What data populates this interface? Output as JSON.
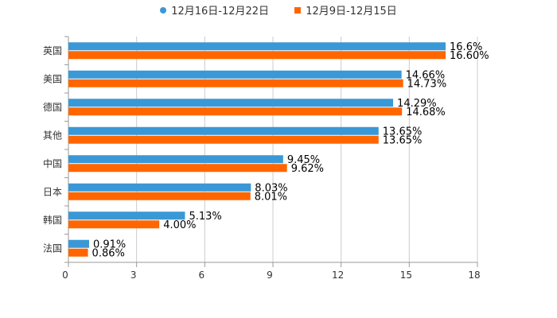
{
  "chart_data": {
    "type": "bar",
    "orientation": "horizontal",
    "categories": [
      "英国",
      "美国",
      "德国",
      "其他",
      "中国",
      "日本",
      "韩国",
      "法国"
    ],
    "series": [
      {
        "name": "12月16日-12月22日",
        "color": "#3a98d6",
        "values": [
          16.6,
          14.66,
          14.29,
          13.65,
          9.45,
          8.03,
          5.13,
          0.91
        ],
        "labels": [
          "16.6%",
          "14.66%",
          "14.29%",
          "13.65%",
          "9.45%",
          "8.03%",
          "5.13%",
          "0.91%"
        ]
      },
      {
        "name": "12月9日-12月15日",
        "color": "#ff6600",
        "values": [
          16.6,
          14.73,
          14.68,
          13.65,
          9.62,
          8.01,
          4.0,
          0.86
        ],
        "labels": [
          "16.60%",
          "14.73%",
          "14.68%",
          "13.65%",
          "9.62%",
          "8.01%",
          "4.00%",
          "0.86%"
        ]
      }
    ],
    "xlim": [
      0,
      18
    ],
    "ticks": [
      0,
      3,
      6,
      9,
      12,
      15,
      18
    ],
    "tick_labels": [
      "0",
      "3",
      "6",
      "9",
      "12",
      "15",
      "18"
    ],
    "grid": true,
    "legend_position": "top-center"
  }
}
